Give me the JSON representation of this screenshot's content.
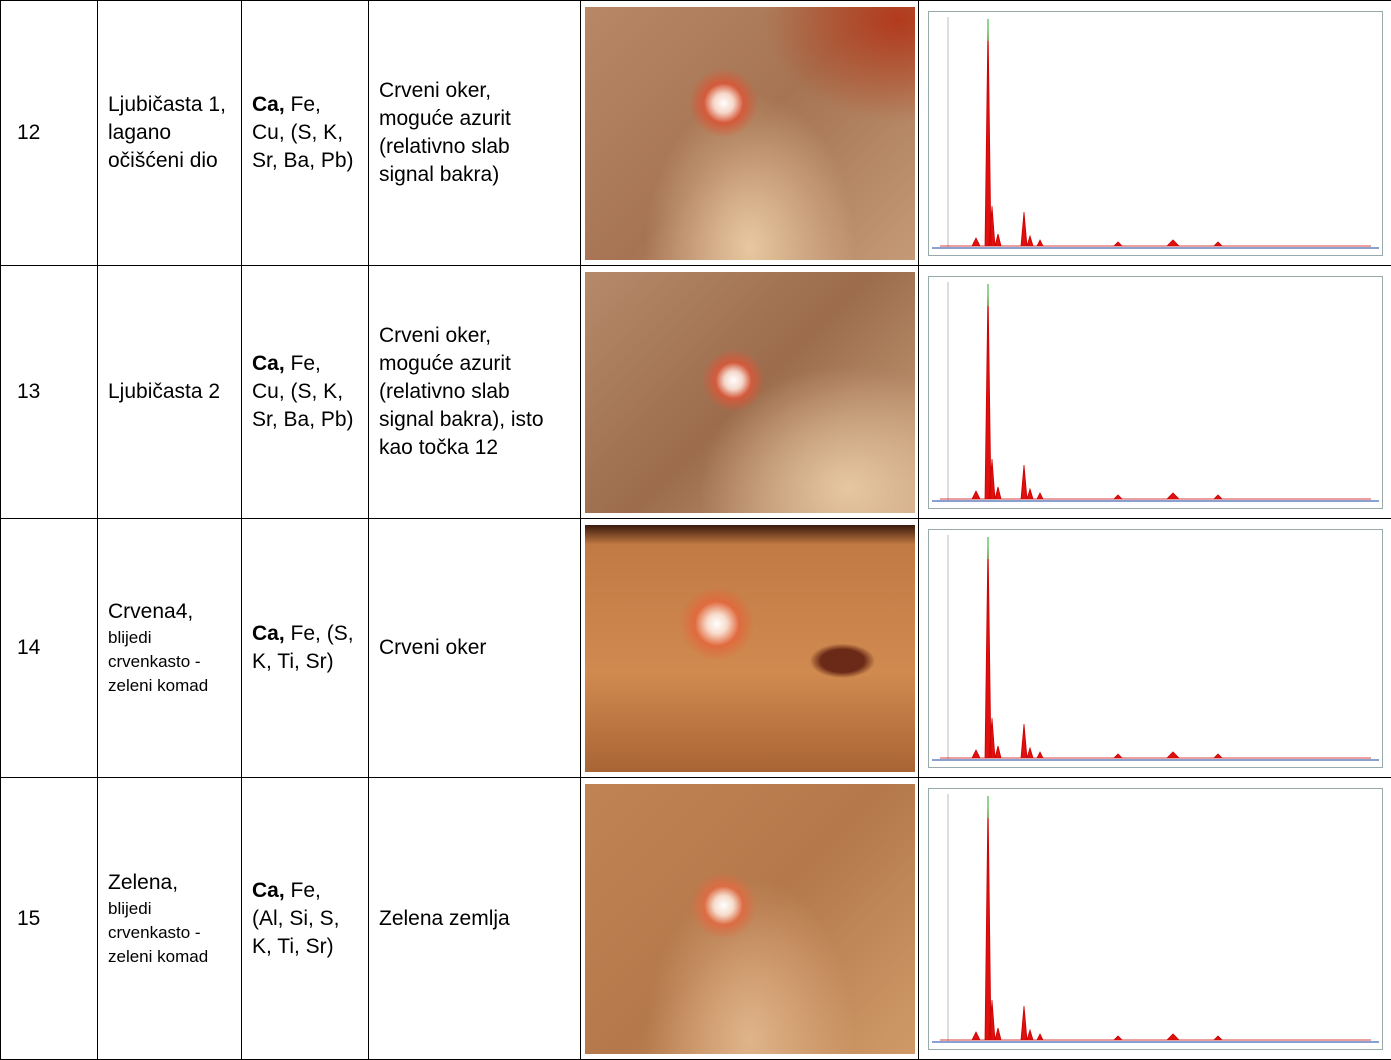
{
  "table": {
    "rows": [
      {
        "number": "12",
        "sample": {
          "main": "Ljubičasta 1, lagano očišćeni dio"
        },
        "elements": {
          "major": "Ca,",
          "minor": "Fe, Cu, (S, K, Sr, Ba, Pb)"
        },
        "interpretation": "Crveni oker, moguće azurit (relativno slab signal bakra)"
      },
      {
        "number": "13",
        "sample": {
          "main": "Ljubičasta 2"
        },
        "elements": {
          "major": "Ca,",
          "minor": "Fe, Cu, (S, K, Sr, Ba, Pb)"
        },
        "interpretation": "Crveni oker, moguće azurit (relativno slab signal bakra), isto kao točka 12"
      },
      {
        "number": "14",
        "sample": {
          "main": "Crvena4,",
          "note": "blijedi crvenkasto -zeleni komad"
        },
        "elements": {
          "major": "Ca,",
          "minor": "Fe, (S, K, Ti, Sr)"
        },
        "interpretation": "Crveni oker"
      },
      {
        "number": "15",
        "sample": {
          "main": "Zelena,",
          "note": "blijedi crvenkasto -zeleni komad"
        },
        "elements": {
          "major": "Ca,",
          "minor": "Fe, (Al, Si, S, K, Ti, Sr)"
        },
        "interpretation": "Zelena zemlja"
      }
    ]
  }
}
